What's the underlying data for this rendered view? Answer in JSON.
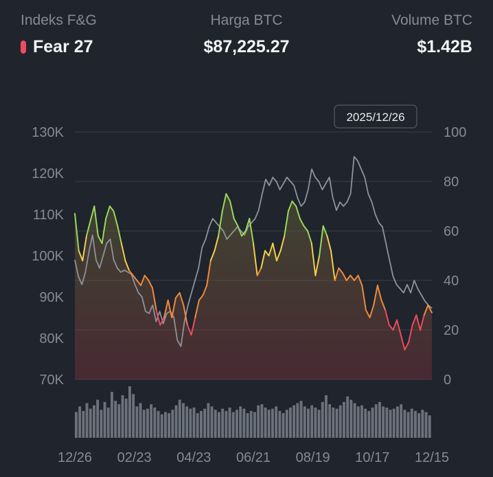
{
  "header": {
    "fg_label": "Indeks F&G",
    "fg_value": "Fear 27",
    "price_label": "Harga BTC",
    "price_value": "$87,225.27",
    "volume_label": "Volume BTC",
    "volume_value": "$1.42B"
  },
  "tooltip": {
    "date": "2025/12/26"
  },
  "colors": {
    "background": "#1f242d",
    "grid": "#3a404b",
    "price_line": "#8e939b",
    "volume_bar": "#6c727c",
    "extreme_fear": "#ef4b5c",
    "fear": "#f08a3c",
    "neutral": "#f4cf4b",
    "greed": "#9bd85a",
    "extreme_greed": "#5fd37a"
  },
  "chart_data": {
    "type": "line",
    "x_ticks": [
      "12/26",
      "02/23",
      "04/23",
      "06/21",
      "08/19",
      "10/17",
      "12/15"
    ],
    "y_left": {
      "ticks": [
        "70K",
        "80K",
        "90K",
        "100K",
        "110K",
        "120K",
        "130K"
      ],
      "range": [
        70000,
        130000
      ]
    },
    "y_right": {
      "ticks": [
        "0",
        "20",
        "40",
        "60",
        "80",
        "100"
      ],
      "range": [
        0,
        100
      ]
    },
    "grid": true,
    "series": [
      {
        "axis": "right",
        "style": "colored-gradient-area",
        "values": [
          67,
          52,
          48,
          58,
          64,
          70,
          58,
          55,
          65,
          70,
          68,
          62,
          55,
          48,
          44,
          42,
          40,
          38,
          42,
          40,
          37,
          28,
          22,
          25,
          32,
          25,
          33,
          35,
          30,
          22,
          18,
          25,
          32,
          34,
          38,
          48,
          52,
          58,
          68,
          75,
          72,
          65,
          62,
          58,
          60,
          65,
          55,
          42,
          45,
          52,
          50,
          55,
          48,
          52,
          58,
          68,
          72,
          70,
          65,
          62,
          60,
          55,
          42,
          50,
          62,
          58,
          52,
          40,
          45,
          43,
          40,
          42,
          40,
          42,
          38,
          28,
          25,
          30,
          38,
          32,
          28,
          22,
          20,
          24,
          18,
          12,
          15,
          22,
          26,
          20,
          26,
          30,
          27
        ]
      },
      {
        "axis": "left",
        "style": "line",
        "values": [
          99000,
          95000,
          93000,
          96000,
          101000,
          105000,
          99000,
          97000,
          100000,
          103000,
          104000,
          99000,
          97000,
          96000,
          96500,
          96000,
          95500,
          93000,
          91000,
          90000,
          86500,
          86000,
          88000,
          84000,
          86500,
          83500,
          86000,
          86500,
          85000,
          79500,
          78000,
          84000,
          88000,
          91000,
          94000,
          97000,
          102000,
          104000,
          107000,
          109000,
          108000,
          107000,
          106000,
          104000,
          105000,
          106000,
          107000,
          106000,
          105000,
          107000,
          108000,
          109000,
          111000,
          115000,
          118500,
          117000,
          119000,
          118000,
          116000,
          117500,
          119000,
          118000,
          117000,
          114000,
          112000,
          113000,
          116000,
          121000,
          119000,
          118000,
          116000,
          117500,
          119000,
          114000,
          111000,
          113000,
          112000,
          113000,
          115000,
          124000,
          123000,
          121000,
          119000,
          115000,
          113000,
          110000,
          108000,
          107000,
          103000,
          99000,
          95000,
          93000,
          92000,
          91000,
          93000,
          91000,
          94000,
          92000,
          90500,
          89000,
          88000,
          87225
        ]
      },
      {
        "axis": "volume",
        "style": "bars",
        "values": [
          2.3,
          2.8,
          2.4,
          3.1,
          2.6,
          2.9,
          3.4,
          2.5,
          3.2,
          2.7,
          4.1,
          3.3,
          3.0,
          3.8,
          3.5,
          4.6,
          3.9,
          2.8,
          3.1,
          2.5,
          2.6,
          3.0,
          2.7,
          2.4,
          2.1,
          2.3,
          2.2,
          2.5,
          2.9,
          3.4,
          3.1,
          2.8,
          2.6,
          2.7,
          2.2,
          2.4,
          2.6,
          3.1,
          2.8,
          2.5,
          2.3,
          2.6,
          2.4,
          2.7,
          2.3,
          2.5,
          2.8,
          2.6,
          2.2,
          2.4,
          2.3,
          2.9,
          3.0,
          2.7,
          2.5,
          2.6,
          2.8,
          2.4,
          2.2,
          2.5,
          2.7,
          2.9,
          3.1,
          3.3,
          2.8,
          2.6,
          2.9,
          2.7,
          2.5,
          3.2,
          3.8,
          3.0,
          2.7,
          2.6,
          2.9,
          3.2,
          3.7,
          3.4,
          3.1,
          2.8,
          2.9,
          2.6,
          2.4,
          2.7,
          3.0,
          3.2,
          2.8,
          2.7,
          2.5,
          2.6,
          2.8,
          3.0,
          2.5,
          2.3,
          2.6,
          2.4,
          2.2,
          2.5,
          2.3,
          2.0
        ]
      }
    ]
  }
}
